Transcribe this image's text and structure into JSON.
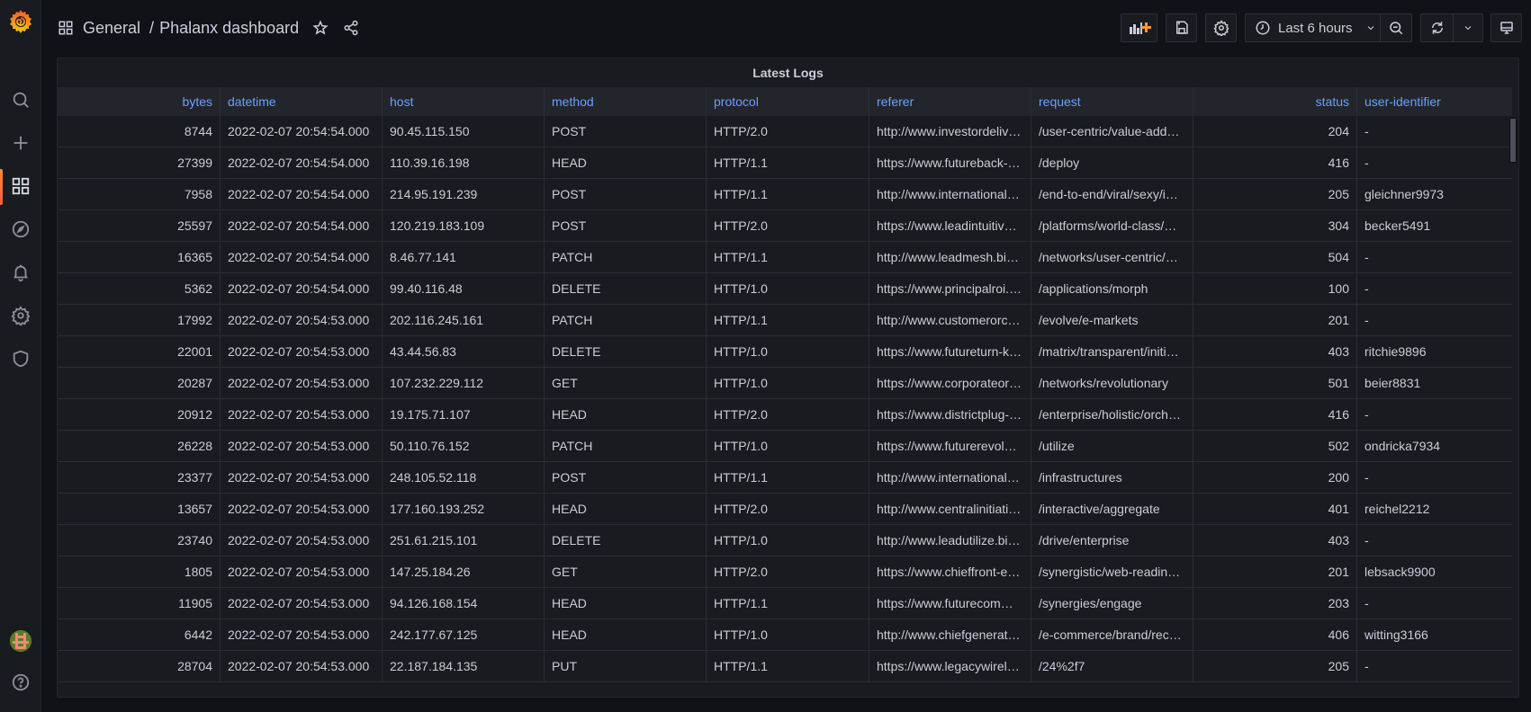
{
  "header": {
    "folder": "General",
    "separator": "/",
    "dashboard_title": "Phalanx dashboard",
    "time_range": "Last 6 hours"
  },
  "sidebar": {
    "items": [
      {
        "name": "search",
        "icon": "search-icon"
      },
      {
        "name": "create",
        "icon": "plus-icon"
      },
      {
        "name": "dashboards",
        "icon": "apps-grid-icon",
        "active": true
      },
      {
        "name": "explore",
        "icon": "compass-icon"
      },
      {
        "name": "alerting",
        "icon": "bell-icon"
      },
      {
        "name": "configuration",
        "icon": "gear-icon"
      },
      {
        "name": "server-admin",
        "icon": "shield-icon"
      }
    ],
    "bottom": [
      {
        "name": "profile",
        "icon": "avatar"
      },
      {
        "name": "help",
        "icon": "question-circle-icon"
      }
    ]
  },
  "toolbar": {
    "buttons": [
      "add-panel",
      "save-dashboard",
      "dashboard-settings",
      "time-picker",
      "zoom-out",
      "refresh",
      "refresh-interval",
      "tv-mode"
    ]
  },
  "colors": {
    "accent": "#6e9fff",
    "brand_orange": "#f55f3e",
    "background": "#111217",
    "panel": "#181b1f"
  },
  "panel": {
    "title": "Latest Logs",
    "columns": [
      "bytes",
      "datetime",
      "host",
      "method",
      "protocol",
      "referer",
      "request",
      "status",
      "user-identifier"
    ],
    "rows": [
      [
        "8744",
        "2022-02-07 20:54:54.000",
        "90.45.115.150",
        "POST",
        "HTTP/2.0",
        "http://www.investordeliv…",
        "/user-centric/value-adde…",
        "204",
        "-"
      ],
      [
        "27399",
        "2022-02-07 20:54:54.000",
        "110.39.16.198",
        "HEAD",
        "HTTP/1.1",
        "https://www.futureback-…",
        "/deploy",
        "416",
        "-"
      ],
      [
        "7958",
        "2022-02-07 20:54:54.000",
        "214.95.191.239",
        "POST",
        "HTTP/1.1",
        "http://www.international…",
        "/end-to-end/viral/sexy/i…",
        "205",
        "gleichner9973"
      ],
      [
        "25597",
        "2022-02-07 20:54:54.000",
        "120.219.183.109",
        "POST",
        "HTTP/2.0",
        "https://www.leadintuitiv…",
        "/platforms/world-class/…",
        "304",
        "becker5491"
      ],
      [
        "16365",
        "2022-02-07 20:54:54.000",
        "8.46.77.141",
        "PATCH",
        "HTTP/1.1",
        "http://www.leadmesh.bi…",
        "/networks/user-centric/…",
        "504",
        "-"
      ],
      [
        "5362",
        "2022-02-07 20:54:54.000",
        "99.40.116.48",
        "DELETE",
        "HTTP/1.0",
        "https://www.principalroi.…",
        "/applications/morph",
        "100",
        "-"
      ],
      [
        "17992",
        "2022-02-07 20:54:53.000",
        "202.116.245.161",
        "PATCH",
        "HTTP/1.1",
        "http://www.customerorc…",
        "/evolve/e-markets",
        "201",
        "-"
      ],
      [
        "22001",
        "2022-02-07 20:54:53.000",
        "43.44.56.83",
        "DELETE",
        "HTTP/1.0",
        "https://www.futureturn-k…",
        "/matrix/transparent/initi…",
        "403",
        "ritchie9896"
      ],
      [
        "20287",
        "2022-02-07 20:54:53.000",
        "107.232.229.112",
        "GET",
        "HTTP/1.0",
        "https://www.corporateor…",
        "/networks/revolutionary",
        "501",
        "beier8831"
      ],
      [
        "20912",
        "2022-02-07 20:54:53.000",
        "19.175.71.107",
        "HEAD",
        "HTTP/2.0",
        "https://www.districtplug-…",
        "/enterprise/holistic/orch…",
        "416",
        "-"
      ],
      [
        "26228",
        "2022-02-07 20:54:53.000",
        "50.110.76.152",
        "PATCH",
        "HTTP/1.0",
        "https://www.futurerevolu…",
        "/utilize",
        "502",
        "ondricka7934"
      ],
      [
        "23377",
        "2022-02-07 20:54:53.000",
        "248.105.52.118",
        "POST",
        "HTTP/1.1",
        "http://www.international…",
        "/infrastructures",
        "200",
        "-"
      ],
      [
        "13657",
        "2022-02-07 20:54:53.000",
        "177.160.193.252",
        "HEAD",
        "HTTP/2.0",
        "http://www.centralinitiati…",
        "/interactive/aggregate",
        "401",
        "reichel2212"
      ],
      [
        "23740",
        "2022-02-07 20:54:53.000",
        "251.61.215.101",
        "DELETE",
        "HTTP/1.0",
        "http://www.leadutilize.bi…",
        "/drive/enterprise",
        "403",
        "-"
      ],
      [
        "1805",
        "2022-02-07 20:54:53.000",
        "147.25.184.26",
        "GET",
        "HTTP/2.0",
        "https://www.chieffront-e…",
        "/synergistic/web-readin…",
        "201",
        "lebsack9900"
      ],
      [
        "11905",
        "2022-02-07 20:54:53.000",
        "94.126.168.154",
        "HEAD",
        "HTTP/1.1",
        "https://www.futurecom…",
        "/synergies/engage",
        "203",
        "-"
      ],
      [
        "6442",
        "2022-02-07 20:54:53.000",
        "242.177.67.125",
        "HEAD",
        "HTTP/1.0",
        "http://www.chiefgenerat…",
        "/e-commerce/brand/rec…",
        "406",
        "witting3166"
      ],
      [
        "28704",
        "2022-02-07 20:54:53.000",
        "22.187.184.135",
        "PUT",
        "HTTP/1.1",
        "https://www.legacywirel…",
        "/24%2f7",
        "205",
        "-"
      ]
    ]
  }
}
